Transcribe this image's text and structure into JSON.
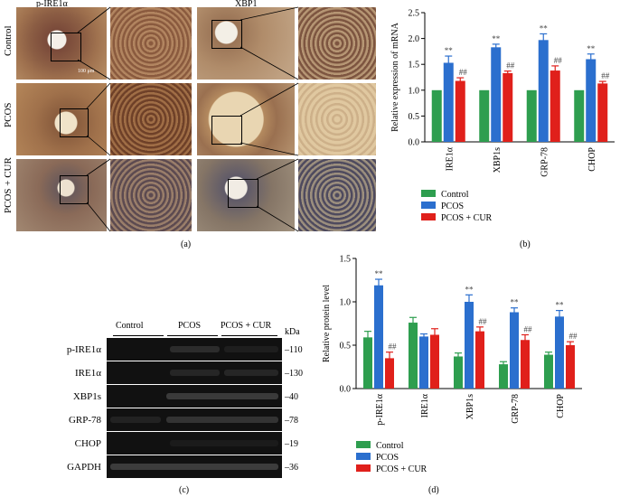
{
  "panels": {
    "a": "(a)",
    "b": "(b)",
    "c": "(c)",
    "d": "(d)"
  },
  "micrographs": {
    "col_headers": [
      "p-IRE1α",
      "XBP1"
    ],
    "row_labels": [
      "Control",
      "PCOS",
      "PCOS + CUR"
    ],
    "scale_bar": "100 μm"
  },
  "western_blot": {
    "group_headers": [
      "Control",
      "PCOS",
      "PCOS + CUR"
    ],
    "kda_header": "kDa",
    "rows": [
      {
        "label": "p-IRE1α",
        "kda": "–110"
      },
      {
        "label": "IRE1α",
        "kda": "–130"
      },
      {
        "label": "XBP1s",
        "kda": "–40"
      },
      {
        "label": "GRP-78",
        "kda": "–78"
      },
      {
        "label": "CHOP",
        "kda": "–19"
      },
      {
        "label": "GAPDH",
        "kda": "–36"
      }
    ]
  },
  "colors": {
    "control": "#2e9e4f",
    "pcos": "#2b6fce",
    "cur": "#e0201b"
  },
  "chart_data": [
    {
      "type": "bar",
      "panel": "b",
      "ylabel": "Relative expression of mRNA",
      "ylim": [
        0,
        2.5
      ],
      "yticks": [
        "0.0",
        "0.5",
        "1.0",
        "1.5",
        "2.0",
        "2.5"
      ],
      "categories": [
        "IRE1α",
        "XBP1s",
        "GRP-78",
        "CHOP"
      ],
      "series": [
        {
          "name": "Control",
          "values": [
            1.0,
            1.0,
            1.0,
            1.0
          ],
          "errors": [
            0,
            0,
            0,
            0
          ]
        },
        {
          "name": "PCOS",
          "values": [
            1.53,
            1.83,
            1.97,
            1.6
          ],
          "errors": [
            0.13,
            0.06,
            0.12,
            0.1
          ]
        },
        {
          "name": "PCOS + CUR",
          "values": [
            1.18,
            1.33,
            1.38,
            1.13
          ],
          "errors": [
            0.06,
            0.04,
            0.09,
            0.04
          ]
        }
      ],
      "annotations": {
        "pcos": "**",
        "cur": "##"
      },
      "legend_position": "bottom"
    },
    {
      "type": "bar",
      "panel": "d",
      "ylabel": "Relative protein level",
      "ylim": [
        0,
        1.5
      ],
      "yticks": [
        "0.0",
        "0.5",
        "1.0",
        "1.5"
      ],
      "categories": [
        "p-IRE1α",
        "IRE1α",
        "XBP1s",
        "GRP-78",
        "CHOP"
      ],
      "series": [
        {
          "name": "Control",
          "values": [
            0.59,
            0.76,
            0.37,
            0.28,
            0.39
          ],
          "errors": [
            0.07,
            0.06,
            0.04,
            0.03,
            0.03
          ]
        },
        {
          "name": "PCOS",
          "values": [
            1.19,
            0.6,
            1.0,
            0.88,
            0.83
          ],
          "errors": [
            0.07,
            0.03,
            0.08,
            0.05,
            0.07
          ]
        },
        {
          "name": "PCOS + CUR",
          "values": [
            0.35,
            0.62,
            0.66,
            0.56,
            0.5
          ],
          "errors": [
            0.07,
            0.07,
            0.05,
            0.06,
            0.04
          ]
        }
      ],
      "annotations": {
        "pcos": [
          "**",
          "",
          "**",
          "**",
          "**"
        ],
        "cur": [
          "##",
          "",
          "##",
          "##",
          "##"
        ]
      },
      "legend_position": "bottom"
    }
  ]
}
